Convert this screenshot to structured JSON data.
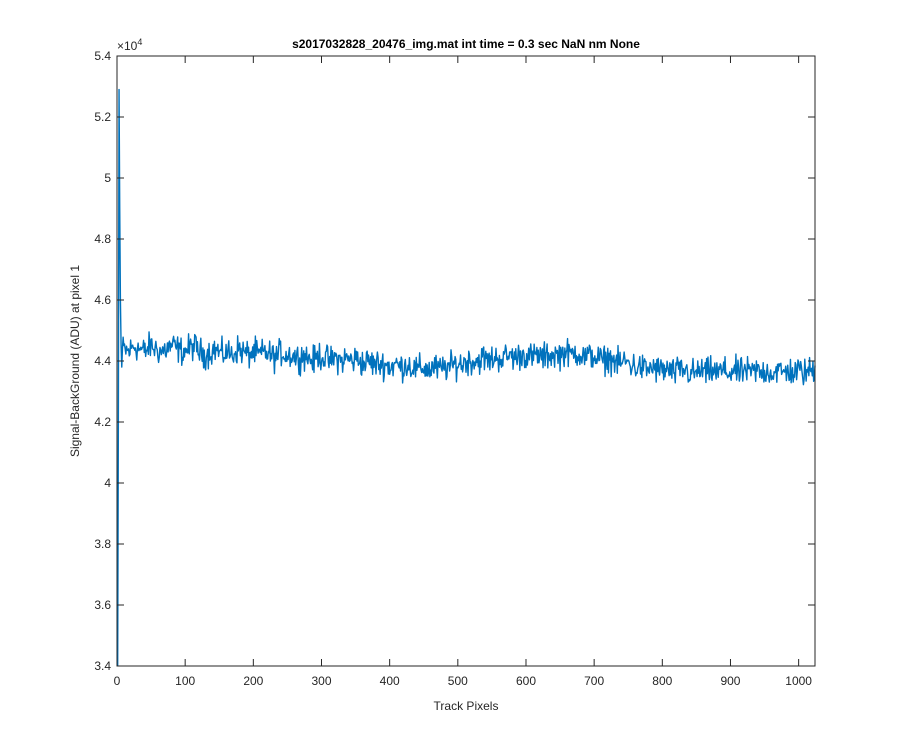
{
  "chart_data": {
    "type": "line",
    "title": "s2017032828_20476_img.mat int time = 0.3 sec  NaN nm None",
    "xlabel": "Track Pixels",
    "ylabel": "Signal-BackGround (ADU) at pixel 1",
    "y_exponent_label": "×10",
    "y_exponent_power": "4",
    "xlim": [
      0,
      1024
    ],
    "ylim": [
      3.4,
      5.4
    ],
    "y_scale_factor": 10000,
    "grid": false,
    "legend": "none",
    "x_ticks": [
      "0",
      "100",
      "200",
      "300",
      "400",
      "500",
      "600",
      "700",
      "800",
      "900",
      "1000"
    ],
    "y_ticks": [
      "3.4",
      "3.6",
      "3.8",
      "4",
      "4.2",
      "4.4",
      "4.6",
      "4.8",
      "5",
      "5.2",
      "5.4"
    ],
    "series": [
      {
        "color": "#0072bd",
        "x_start": 1,
        "x_step": 8,
        "initial_points": [
          [
            1,
            3.4
          ],
          [
            2,
            4.2
          ],
          [
            3,
            5.29
          ],
          [
            4,
            4.9
          ],
          [
            5,
            4.6
          ],
          [
            6,
            4.45
          ],
          [
            7,
            4.38
          ]
        ],
        "values": [
          4.42,
          4.44,
          4.43,
          4.45,
          4.44,
          4.43,
          4.45,
          4.44,
          4.43,
          4.44,
          4.45,
          4.44,
          4.43,
          4.44,
          4.45,
          4.43,
          4.42,
          4.43,
          4.44,
          4.42,
          4.43,
          4.42,
          4.44,
          4.43,
          4.42,
          4.43,
          4.42,
          4.43,
          4.42,
          4.41,
          4.43,
          4.42,
          4.42,
          4.41,
          4.42,
          4.41,
          4.4,
          4.42,
          4.41,
          4.4,
          4.41,
          4.4,
          4.41,
          4.4,
          4.41,
          4.39,
          4.4,
          4.39,
          4.39,
          4.39,
          4.38,
          4.39,
          4.38,
          4.39,
          4.38,
          4.37,
          4.38,
          4.37,
          4.38,
          4.37,
          4.38,
          4.38,
          4.39,
          4.39,
          4.4,
          4.4,
          4.4,
          4.41,
          4.4,
          4.41,
          4.41,
          4.41,
          4.42,
          4.41,
          4.42,
          4.42,
          4.41,
          4.42,
          4.41,
          4.42,
          4.42,
          4.42,
          4.43,
          4.42,
          4.43,
          4.42,
          4.41,
          4.42,
          4.41,
          4.4,
          4.41,
          4.4,
          4.39,
          4.4,
          4.39,
          4.38,
          4.38,
          4.37,
          4.38,
          4.37,
          4.37,
          4.37,
          4.36,
          4.37,
          4.37,
          4.36,
          4.36,
          4.37,
          4.36,
          4.37,
          4.36,
          4.37,
          4.36,
          4.37,
          4.36,
          4.37,
          4.36,
          4.37,
          4.36,
          4.37,
          4.36,
          4.37,
          4.36,
          4.37,
          4.36,
          4.37,
          4.36,
          4.37,
          4.37
        ],
        "noise_amplitude": 0.045
      }
    ]
  }
}
